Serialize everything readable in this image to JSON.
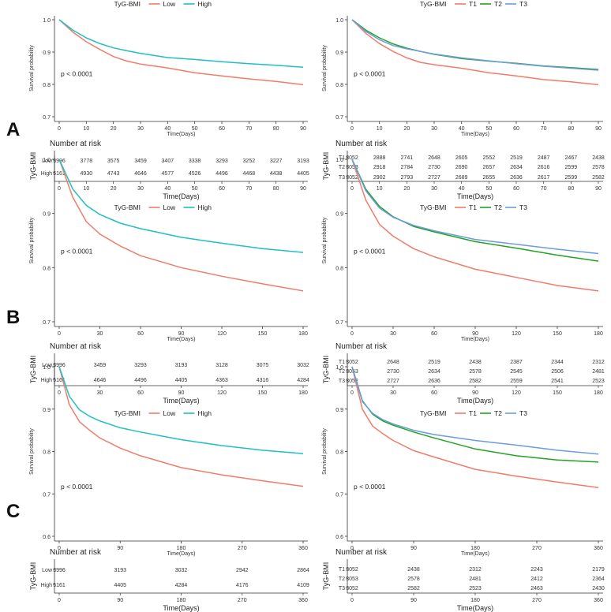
{
  "panel_labels": [
    "A",
    "B",
    "C"
  ],
  "colors": {
    "low": "#F07C6B",
    "high": "#1FBFC3",
    "t1": "#F07C6B",
    "t2": "#22A321",
    "t3": "#6C9BE0"
  },
  "chart_data": [
    {
      "id": "A-left",
      "panel": "A",
      "type": "line",
      "legend_title": "TyG-BMI",
      "series": [
        {
          "name": "Low",
          "color_key": "low",
          "x": [
            0,
            5,
            10,
            15,
            20,
            25,
            30,
            40,
            50,
            60,
            70,
            80,
            90
          ],
          "values": [
            1.0,
            0.962,
            0.932,
            0.908,
            0.886,
            0.872,
            0.863,
            0.851,
            0.836,
            0.826,
            0.817,
            0.809,
            0.799
          ]
        },
        {
          "name": "High",
          "color_key": "high",
          "x": [
            0,
            5,
            10,
            15,
            20,
            25,
            30,
            40,
            50,
            60,
            70,
            80,
            90
          ],
          "values": [
            1.0,
            0.968,
            0.944,
            0.926,
            0.913,
            0.904,
            0.896,
            0.883,
            0.877,
            0.87,
            0.864,
            0.859,
            0.853
          ]
        }
      ],
      "pvalue": "p < 0.0001",
      "xlim": [
        0,
        90
      ],
      "ylim": [
        0.7,
        1.0
      ],
      "xticks": [
        0,
        10,
        20,
        30,
        40,
        50,
        60,
        70,
        80,
        90
      ],
      "yticks": [
        0.7,
        0.8,
        0.9,
        1.0
      ],
      "xtick_labels": [
        "0",
        "10",
        "20",
        "30",
        "40",
        "50",
        "60",
        "70",
        "80",
        "90"
      ],
      "ytick_labels": [
        "0.7",
        "0.8",
        "0.9",
        "1.0"
      ],
      "xlabel": "Time(Days)",
      "ylabel": "Survival probability",
      "risk_title": "Number at risk",
      "risk_ylabel": "TyG-BMI",
      "risk_xlabel": "Time(Days)",
      "risk_rows": [
        {
          "label": "Low",
          "values": [
            "3996",
            "3778",
            "3575",
            "3459",
            "3407",
            "3338",
            "3293",
            "3252",
            "3227",
            "3193"
          ]
        },
        {
          "label": "High",
          "values": [
            "5161",
            "4930",
            "4743",
            "4646",
            "4577",
            "4526",
            "4496",
            "4468",
            "4438",
            "4405"
          ]
        }
      ]
    },
    {
      "id": "A-right",
      "panel": "A",
      "type": "line",
      "legend_title": "TyG-BMI",
      "series": [
        {
          "name": "T1",
          "color_key": "t1",
          "x": [
            0,
            5,
            10,
            15,
            20,
            25,
            30,
            40,
            50,
            60,
            70,
            80,
            90
          ],
          "values": [
            1.0,
            0.958,
            0.926,
            0.902,
            0.882,
            0.868,
            0.861,
            0.85,
            0.836,
            0.826,
            0.815,
            0.808,
            0.799
          ]
        },
        {
          "name": "T2",
          "color_key": "t2",
          "x": [
            0,
            5,
            10,
            15,
            20,
            25,
            30,
            40,
            50,
            60,
            70,
            80,
            90
          ],
          "values": [
            1.0,
            0.968,
            0.944,
            0.925,
            0.912,
            0.902,
            0.893,
            0.88,
            0.872,
            0.865,
            0.857,
            0.852,
            0.846
          ]
        },
        {
          "name": "T3",
          "color_key": "t3",
          "x": [
            0,
            5,
            10,
            15,
            20,
            25,
            30,
            40,
            50,
            60,
            70,
            80,
            90
          ],
          "values": [
            1.0,
            0.964,
            0.938,
            0.92,
            0.91,
            0.902,
            0.894,
            0.882,
            0.873,
            0.864,
            0.856,
            0.85,
            0.844
          ]
        }
      ],
      "pvalue": "p < 0.0001",
      "xlim": [
        0,
        90
      ],
      "ylim": [
        0.7,
        1.0
      ],
      "xticks": [
        0,
        10,
        20,
        30,
        40,
        50,
        60,
        70,
        80,
        90
      ],
      "yticks": [
        0.7,
        0.8,
        0.9,
        1.0
      ],
      "xtick_labels": [
        "0",
        "10",
        "20",
        "30",
        "40",
        "50",
        "60",
        "70",
        "80",
        "90"
      ],
      "ytick_labels": [
        "0.7",
        "0.8",
        "0.9",
        "1.0"
      ],
      "xlabel": "Time(Days)",
      "ylabel": "Survival probability",
      "risk_title": "Number at risk",
      "risk_ylabel": "TyG-BMI",
      "risk_xlabel": "Time(Days)",
      "risk_rows": [
        {
          "label": "T1",
          "values": [
            "3052",
            "2888",
            "2741",
            "2648",
            "2605",
            "2552",
            "2519",
            "2487",
            "2467",
            "2438"
          ]
        },
        {
          "label": "T2",
          "values": [
            "3053",
            "2918",
            "2784",
            "2730",
            "2690",
            "2657",
            "2634",
            "2616",
            "2599",
            "2578"
          ]
        },
        {
          "label": "T3",
          "values": [
            "3052",
            "2902",
            "2793",
            "2727",
            "2689",
            "2655",
            "2636",
            "2617",
            "2599",
            "2582"
          ]
        }
      ]
    },
    {
      "id": "B-left",
      "panel": "B",
      "type": "line",
      "legend_title": "TyG-BMI",
      "series": [
        {
          "name": "Low",
          "color_key": "low",
          "x": [
            0,
            10,
            20,
            30,
            45,
            60,
            90,
            120,
            150,
            180
          ],
          "values": [
            1.0,
            0.93,
            0.885,
            0.862,
            0.84,
            0.822,
            0.8,
            0.784,
            0.77,
            0.757
          ]
        },
        {
          "name": "High",
          "color_key": "high",
          "x": [
            0,
            10,
            20,
            30,
            45,
            60,
            90,
            120,
            150,
            180
          ],
          "values": [
            1.0,
            0.945,
            0.915,
            0.898,
            0.882,
            0.872,
            0.856,
            0.845,
            0.835,
            0.828
          ]
        }
      ],
      "pvalue": "p < 0.0001",
      "xlim": [
        0,
        180
      ],
      "ylim": [
        0.7,
        1.0
      ],
      "xticks": [
        0,
        30,
        60,
        90,
        120,
        150,
        180
      ],
      "yticks": [
        0.7,
        0.8,
        0.9,
        1.0
      ],
      "xtick_labels": [
        "0",
        "30",
        "60",
        "90",
        "120",
        "150",
        "180"
      ],
      "ytick_labels": [
        "0.7",
        "0.8",
        "0.9",
        "1.0"
      ],
      "xlabel": "Time(Days)",
      "ylabel": "Survival probability",
      "risk_title": "Number at risk",
      "risk_ylabel": "TyG-BMI",
      "risk_xlabel": "Time(Days)",
      "risk_rows": [
        {
          "label": "Low",
          "values": [
            "3996",
            "3459",
            "3293",
            "3193",
            "3128",
            "3075",
            "3032"
          ]
        },
        {
          "label": "High",
          "values": [
            "5161",
            "4646",
            "4496",
            "4405",
            "4363",
            "4316",
            "4284"
          ]
        }
      ]
    },
    {
      "id": "B-right",
      "panel": "B",
      "type": "line",
      "legend_title": "TyG-BMI",
      "series": [
        {
          "name": "T1",
          "color_key": "t1",
          "x": [
            0,
            10,
            20,
            30,
            45,
            60,
            90,
            120,
            150,
            180
          ],
          "values": [
            1.0,
            0.925,
            0.88,
            0.858,
            0.835,
            0.82,
            0.797,
            0.782,
            0.767,
            0.757
          ]
        },
        {
          "name": "T2",
          "color_key": "t2",
          "x": [
            0,
            10,
            20,
            30,
            45,
            60,
            90,
            120,
            150,
            180
          ],
          "values": [
            1.0,
            0.945,
            0.913,
            0.894,
            0.876,
            0.866,
            0.848,
            0.836,
            0.823,
            0.812
          ]
        },
        {
          "name": "T3",
          "color_key": "t3",
          "x": [
            0,
            10,
            20,
            30,
            45,
            60,
            90,
            120,
            150,
            180
          ],
          "values": [
            1.0,
            0.942,
            0.91,
            0.893,
            0.878,
            0.868,
            0.852,
            0.843,
            0.834,
            0.826
          ]
        }
      ],
      "pvalue": "p < 0.0001",
      "xlim": [
        0,
        180
      ],
      "ylim": [
        0.7,
        1.0
      ],
      "xticks": [
        0,
        30,
        60,
        90,
        120,
        150,
        180
      ],
      "yticks": [
        0.7,
        0.8,
        0.9,
        1.0
      ],
      "xtick_labels": [
        "0",
        "30",
        "60",
        "90",
        "120",
        "150",
        "180"
      ],
      "ytick_labels": [
        "0.7",
        "0.8",
        "0.9",
        "1.0"
      ],
      "xlabel": "Time(Days)",
      "ylabel": "Survival probability",
      "risk_title": "Number at risk",
      "risk_ylabel": "TyG-BMI",
      "risk_xlabel": "Time(Days)",
      "risk_rows": [
        {
          "label": "T1",
          "values": [
            "3052",
            "2648",
            "2519",
            "2438",
            "2387",
            "2344",
            "2312"
          ]
        },
        {
          "label": "T2",
          "values": [
            "3053",
            "2730",
            "2634",
            "2578",
            "2545",
            "2506",
            "2481"
          ]
        },
        {
          "label": "T3",
          "values": [
            "3052",
            "2727",
            "2636",
            "2582",
            "2559",
            "2541",
            "2523"
          ]
        }
      ]
    },
    {
      "id": "C-left",
      "panel": "C",
      "type": "line",
      "legend_title": "TyG-BMI",
      "series": [
        {
          "name": "Low",
          "color_key": "low",
          "x": [
            0,
            15,
            30,
            45,
            60,
            90,
            120,
            180,
            240,
            300,
            360
          ],
          "values": [
            1.0,
            0.91,
            0.87,
            0.85,
            0.832,
            0.808,
            0.79,
            0.762,
            0.745,
            0.731,
            0.718
          ]
        },
        {
          "name": "High",
          "color_key": "high",
          "x": [
            0,
            15,
            30,
            45,
            60,
            90,
            120,
            180,
            240,
            300,
            360
          ],
          "values": [
            1.0,
            0.93,
            0.898,
            0.883,
            0.872,
            0.856,
            0.846,
            0.828,
            0.814,
            0.803,
            0.795
          ]
        }
      ],
      "pvalue": "p < 0.0001",
      "xlim": [
        0,
        360
      ],
      "ylim": [
        0.6,
        1.0
      ],
      "xticks": [
        0,
        90,
        180,
        270,
        360
      ],
      "yticks": [
        0.6,
        0.7,
        0.8,
        0.9,
        1.0
      ],
      "xtick_labels": [
        "0",
        "90",
        "180",
        "270",
        "360"
      ],
      "ytick_labels": [
        "0.6",
        "0.7",
        "0.8",
        "0.9",
        "1.0"
      ],
      "xlabel": "Time(Days)",
      "ylabel": "Survival probability",
      "risk_title": "Number at risk",
      "risk_ylabel": "TyG-BMI",
      "risk_xlabel": "Time(Days)",
      "risk_rows": [
        {
          "label": "Low",
          "values": [
            "3996",
            "3193",
            "3032",
            "2942",
            "2864"
          ]
        },
        {
          "label": "High",
          "values": [
            "5161",
            "4405",
            "4284",
            "4176",
            "4109"
          ]
        }
      ]
    },
    {
      "id": "C-right",
      "panel": "C",
      "type": "line",
      "legend_title": "TyG-BMI",
      "series": [
        {
          "name": "T1",
          "color_key": "t1",
          "x": [
            0,
            15,
            30,
            45,
            60,
            90,
            120,
            180,
            240,
            300,
            360
          ],
          "values": [
            1.0,
            0.9,
            0.86,
            0.842,
            0.826,
            0.802,
            0.787,
            0.758,
            0.742,
            0.728,
            0.715
          ]
        },
        {
          "name": "T2",
          "color_key": "t2",
          "x": [
            0,
            15,
            30,
            45,
            60,
            90,
            120,
            180,
            240,
            300,
            360
          ],
          "values": [
            1.0,
            0.92,
            0.888,
            0.872,
            0.862,
            0.846,
            0.832,
            0.806,
            0.79,
            0.78,
            0.775
          ]
        },
        {
          "name": "T3",
          "color_key": "t3",
          "x": [
            0,
            15,
            30,
            45,
            60,
            90,
            120,
            180,
            240,
            300,
            360
          ],
          "values": [
            1.0,
            0.918,
            0.89,
            0.875,
            0.865,
            0.85,
            0.84,
            0.826,
            0.815,
            0.803,
            0.794
          ]
        }
      ],
      "pvalue": "p < 0.0001",
      "xlim": [
        0,
        360
      ],
      "ylim": [
        0.6,
        1.0
      ],
      "xticks": [
        0,
        90,
        180,
        270,
        360
      ],
      "yticks": [
        0.6,
        0.7,
        0.8,
        0.9,
        1.0
      ],
      "xtick_labels": [
        "0",
        "90",
        "180",
        "270",
        "360"
      ],
      "ytick_labels": [
        "0.6",
        "0.7",
        "0.8",
        "0.9",
        "1.0"
      ],
      "xlabel": "Time(Days)",
      "ylabel": "Survival probability",
      "risk_title": "Number at risk",
      "risk_ylabel": "TyG-BMI",
      "risk_xlabel": "Time(Days)",
      "risk_rows": [
        {
          "label": "T1",
          "values": [
            "3052",
            "2438",
            "2312",
            "2243",
            "2179"
          ]
        },
        {
          "label": "T2",
          "values": [
            "3053",
            "2578",
            "2481",
            "2412",
            "2364"
          ]
        },
        {
          "label": "T3",
          "values": [
            "3052",
            "2582",
            "2523",
            "2463",
            "2430"
          ]
        }
      ]
    }
  ]
}
